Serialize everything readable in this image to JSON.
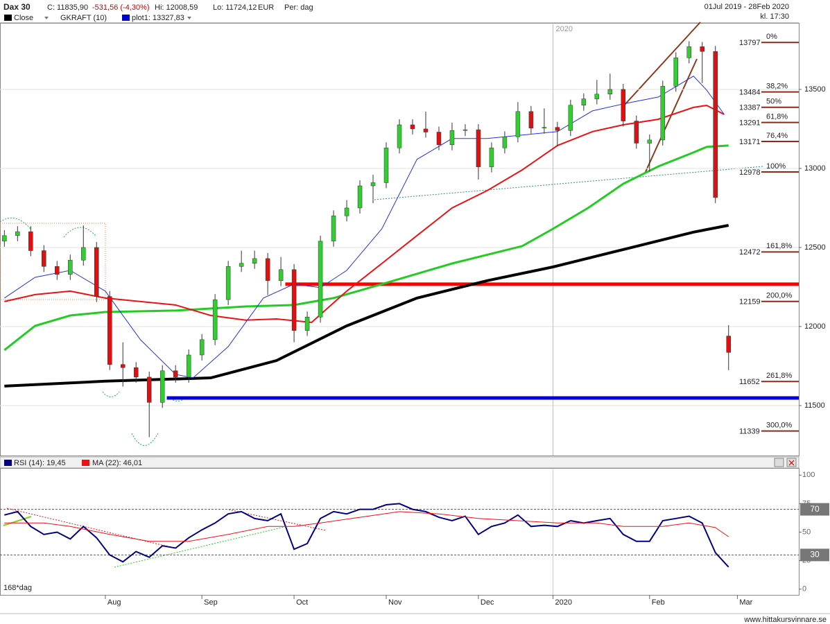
{
  "header": {
    "symbol": "Dax 30",
    "close": "C: 11835,90",
    "change": "-531,56 (-4,30%)",
    "high": "Hi: 12008,59",
    "low": "Lo: 11724,12",
    "currency": "EUR",
    "period": "Per: dag",
    "range": "01Jul 2019 - 28Feb 2020",
    "time": "kl. 17:30",
    "legend": [
      "Close",
      "GKRAFT (10)",
      "plot1: 13327,83"
    ],
    "rsi_legend": [
      "RSI (14): 19,45",
      "MA (22): 46,01"
    ],
    "bars": "168*dag",
    "footer": "www.hittakursvinnare.se"
  },
  "chart_data": [
    {
      "type": "candlestick",
      "xlim": [
        -1,
        181
      ],
      "ylim": [
        11184,
        13912
      ],
      "yticks": [
        11500,
        12000,
        12500,
        13000,
        13500
      ],
      "grid": true,
      "up_color": "#33cc33",
      "down_color": "#dd1111",
      "x": [
        0,
        3,
        6,
        9,
        12,
        15,
        18,
        21,
        24,
        27,
        30,
        33,
        36,
        39,
        42,
        45,
        48,
        51,
        54,
        57,
        60,
        63,
        66,
        69,
        72,
        75,
        78,
        81,
        84,
        87,
        90,
        93,
        96,
        99,
        102,
        105,
        108,
        111,
        114,
        117,
        120,
        123,
        126,
        129,
        132,
        135,
        138,
        141,
        144,
        147,
        150,
        153,
        156,
        159,
        162,
        165
      ],
      "open": [
        12540,
        12575,
        12600,
        12480,
        12380,
        12330,
        12420,
        12500,
        12190,
        11760,
        11740,
        11680,
        11520,
        11720,
        11680,
        11820,
        11917,
        12170,
        12380,
        12400,
        12430,
        12290,
        12360,
        11975,
        12060,
        12540,
        12700,
        12750,
        12890,
        12910,
        13130,
        13276,
        13250,
        13230,
        13150,
        13240,
        13245,
        13010,
        13130,
        13200,
        13360,
        13255,
        13260,
        13240,
        13400,
        13440,
        13470,
        13500,
        13300,
        13160,
        13180,
        13520,
        13700,
        13770,
        13740,
        11940
      ],
      "high": [
        12610,
        12635,
        12635,
        12515,
        12415,
        12455,
        12640,
        12535,
        12225,
        11900,
        11775,
        11715,
        11755,
        11755,
        11855,
        11952,
        12205,
        12415,
        12480,
        12480,
        12465,
        12440,
        12395,
        12095,
        12575,
        12735,
        12800,
        12925,
        12960,
        13165,
        13311,
        13311,
        13360,
        13265,
        13290,
        13280,
        13280,
        13165,
        13235,
        13420,
        13395,
        13380,
        13295,
        13435,
        13475,
        13560,
        13600,
        13535,
        13335,
        13215,
        13555,
        13735,
        13805,
        13800,
        13775,
        12009
      ],
      "low": [
        12505,
        12540,
        12445,
        12345,
        12295,
        12295,
        12385,
        12155,
        11725,
        11620,
        11645,
        11300,
        11485,
        11645,
        11645,
        11785,
        11882,
        12135,
        12345,
        12365,
        12200,
        12255,
        11900,
        11940,
        12025,
        12505,
        12665,
        12715,
        12780,
        12875,
        13095,
        13215,
        13195,
        13115,
        13115,
        13205,
        12930,
        12975,
        13095,
        13165,
        13220,
        13220,
        13140,
        13205,
        13365,
        13405,
        13435,
        13265,
        13125,
        12980,
        13145,
        13485,
        13665,
        13540,
        12781,
        11724
      ],
      "close": [
        12575,
        12600,
        12480,
        12380,
        12330,
        12420,
        12500,
        12190,
        11760,
        11740,
        11680,
        11520,
        11720,
        11680,
        11820,
        11917,
        12170,
        12380,
        12400,
        12430,
        12290,
        12360,
        11975,
        12060,
        12540,
        12700,
        12750,
        12890,
        12910,
        13130,
        13276,
        13250,
        13230,
        13150,
        13240,
        13245,
        13010,
        13130,
        13200,
        13360,
        13255,
        13260,
        13240,
        13400,
        13440,
        13470,
        13500,
        13300,
        13160,
        13180,
        13520,
        13700,
        13770,
        13740,
        12816,
        11836
      ],
      "series": [
        {
          "color": "#000000",
          "width": 4,
          "x": [
            0,
            23,
            47,
            62,
            78,
            94,
            110,
            125,
            141,
            157,
            165
          ],
          "values": [
            11623,
            11654,
            11675,
            11785,
            12004,
            12180,
            12290,
            12377,
            12487,
            12597,
            12640
          ]
        },
        {
          "color": "#22cc22",
          "width": 3,
          "x": [
            0,
            7,
            15,
            23,
            39,
            55,
            66,
            75,
            86,
            102,
            118,
            125,
            133,
            141,
            149,
            157,
            160,
            165
          ],
          "values": [
            11851,
            12004,
            12070,
            12092,
            12101,
            12127,
            12136,
            12180,
            12268,
            12399,
            12509,
            12618,
            12750,
            12903,
            13013,
            13101,
            13136,
            13145
          ]
        },
        {
          "color": "#ee1111",
          "width": 2,
          "x": [
            0,
            7,
            15,
            23,
            31,
            39,
            47,
            55,
            62,
            70,
            78,
            86,
            94,
            102,
            110,
            118,
            126,
            134,
            141,
            149,
            157,
            160,
            164
          ],
          "values": [
            12158,
            12202,
            12224,
            12180,
            12158,
            12136,
            12070,
            12040,
            12048,
            12026,
            12224,
            12399,
            12575,
            12750,
            12860,
            12991,
            13145,
            13233,
            13276,
            13311,
            13386,
            13399,
            13342
          ]
        },
        {
          "color": "#2233dd",
          "width": 1,
          "x": [
            0,
            7,
            15,
            23,
            31,
            39,
            43,
            51,
            59,
            66,
            72,
            78,
            86,
            94,
            102,
            110,
            118,
            126,
            134,
            141,
            149,
            157,
            160,
            164
          ],
          "values": [
            12180,
            12311,
            12355,
            12224,
            11917,
            11697,
            11675,
            11873,
            12180,
            12268,
            12246,
            12355,
            12618,
            13057,
            13189,
            13189,
            13211,
            13233,
            13364,
            13408,
            13452,
            13584,
            13496,
            13342
          ]
        }
      ],
      "hlines": [
        {
          "value": 12268,
          "color": "#ff0000",
          "from": 64
        },
        {
          "value": 11548,
          "color": "#0000dd",
          "from": 37
        }
      ],
      "fib_levels": [
        {
          "value": 13797,
          "label": "0%"
        },
        {
          "value": 13484,
          "label": "38,2%"
        },
        {
          "value": 13387,
          "label": "50%"
        },
        {
          "value": 13291,
          "label": "61,8%"
        },
        {
          "value": 13171,
          "label": "76,4%"
        },
        {
          "value": 12978,
          "label": "100%"
        },
        {
          "value": 12472,
          "label": "161,8%"
        },
        {
          "value": 12159,
          "label": "200,0%"
        },
        {
          "value": 11652,
          "label": "261,8%"
        },
        {
          "value": 11339,
          "label": "300,0%"
        }
      ],
      "fib_color": "#8b2a1a"
    },
    {
      "type": "line",
      "xlim": [
        -1,
        181
      ],
      "ylim": [
        -5,
        105
      ],
      "yticks": [
        0,
        25,
        50,
        75,
        100
      ],
      "levels": [
        70,
        30
      ],
      "xticks": [
        {
          "value": 23,
          "label": "Aug"
        },
        {
          "value": 45,
          "label": "Sep"
        },
        {
          "value": 66,
          "label": "Oct"
        },
        {
          "value": 87,
          "label": "Nov"
        },
        {
          "value": 108,
          "label": "Dec"
        },
        {
          "value": 125,
          "label": "2020"
        },
        {
          "value": 147,
          "label": "Feb"
        },
        {
          "value": 167,
          "label": "Mar"
        }
      ],
      "series": [
        {
          "color": "#000080",
          "x": [
            0,
            3,
            6,
            9,
            12,
            15,
            18,
            21,
            24,
            27,
            30,
            33,
            36,
            39,
            42,
            45,
            48,
            51,
            54,
            57,
            60,
            63,
            66,
            69,
            72,
            75,
            78,
            81,
            84,
            87,
            90,
            93,
            96,
            99,
            102,
            105,
            108,
            111,
            114,
            117,
            120,
            123,
            126,
            129,
            132,
            135,
            138,
            141,
            144,
            147,
            150,
            153,
            156,
            159,
            162,
            165
          ],
          "values": [
            65,
            68,
            55,
            48,
            50,
            44,
            55,
            45,
            30,
            24,
            33,
            28,
            38,
            36,
            45,
            52,
            58,
            66,
            68,
            62,
            60,
            66,
            35,
            40,
            62,
            68,
            66,
            70,
            70,
            74,
            75,
            70,
            68,
            63,
            60,
            64,
            48,
            55,
            58,
            65,
            55,
            56,
            55,
            60,
            58,
            60,
            62,
            48,
            42,
            42,
            60,
            62,
            64,
            58,
            32,
            19.45
          ]
        },
        {
          "color": "#ee1111",
          "x": [
            0,
            9,
            15,
            24,
            33,
            42,
            51,
            60,
            66,
            72,
            81,
            90,
            99,
            108,
            117,
            126,
            135,
            141,
            150,
            156,
            162,
            165
          ],
          "values": [
            58,
            58,
            55,
            48,
            42,
            42,
            48,
            55,
            55,
            58,
            63,
            68,
            66,
            62,
            60,
            58,
            58,
            55,
            55,
            58,
            54,
            46.01
          ]
        }
      ]
    }
  ]
}
